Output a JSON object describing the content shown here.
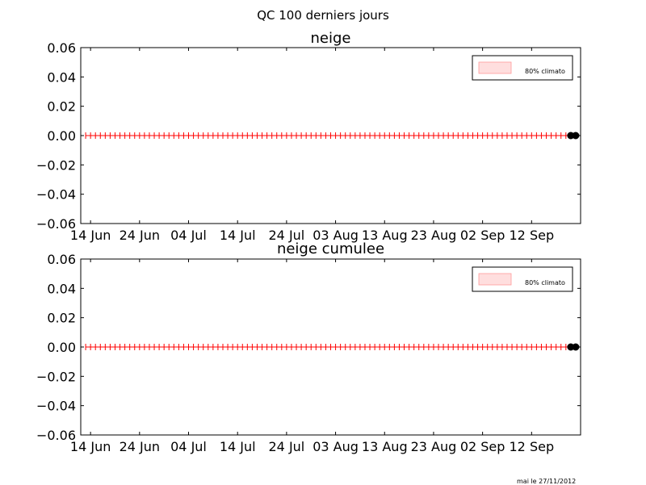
{
  "figure": {
    "suptitle": "QC 100 derniers jours",
    "footer": "mai le 27/11/2012"
  },
  "colors": {
    "series_line": "#ff0000",
    "climato_fill": "#ffdede",
    "climato_edge": "#ff9a9a",
    "last_points": "#000000"
  },
  "chart_data": [
    {
      "type": "line",
      "title": "neige",
      "xlabel": "",
      "ylabel": "",
      "x_range": [
        "2012-06-12",
        "2012-09-22"
      ],
      "ylim": [
        -0.06,
        0.06
      ],
      "yticks": [
        0.06,
        0.04,
        0.02,
        0.0,
        -0.02,
        -0.04,
        -0.06
      ],
      "ytick_labels": [
        "0.06",
        "0.04",
        "0.02",
        "0.00",
        "−0.02",
        "−0.04",
        "−0.06"
      ],
      "xticks": [
        "2012-06-14",
        "2012-06-24",
        "2012-07-04",
        "2012-07-14",
        "2012-07-24",
        "2012-08-03",
        "2012-08-13",
        "2012-08-23",
        "2012-09-02",
        "2012-09-12"
      ],
      "xtick_labels": [
        "14 Jun",
        "24 Jun",
        "04 Jul",
        "14 Jul",
        "24 Jul",
        "03 Aug",
        "13 Aug",
        "23 Aug",
        "02 Sep",
        "12 Sep"
      ],
      "grid": false,
      "legend": {
        "position": "top-right",
        "entries": [
          "80% climato"
        ]
      },
      "series": [
        {
          "marker": "+",
          "dates_start": "2012-06-13",
          "dates_end": "2012-09-20",
          "constant_value": 0.0
        },
        {
          "marker": "o",
          "x": [
            "2012-09-20",
            "2012-09-21"
          ],
          "y": [
            0.0,
            0.0
          ]
        }
      ]
    },
    {
      "type": "line",
      "title": "neige cumulee",
      "xlabel": "",
      "ylabel": "",
      "x_range": [
        "2012-06-12",
        "2012-09-22"
      ],
      "ylim": [
        -0.06,
        0.06
      ],
      "yticks": [
        0.06,
        0.04,
        0.02,
        0.0,
        -0.02,
        -0.04,
        -0.06
      ],
      "ytick_labels": [
        "0.06",
        "0.04",
        "0.02",
        "0.00",
        "−0.02",
        "−0.04",
        "−0.06"
      ],
      "xticks": [
        "2012-06-14",
        "2012-06-24",
        "2012-07-04",
        "2012-07-14",
        "2012-07-24",
        "2012-08-03",
        "2012-08-13",
        "2012-08-23",
        "2012-09-02",
        "2012-09-12"
      ],
      "xtick_labels": [
        "14 Jun",
        "24 Jun",
        "04 Jul",
        "14 Jul",
        "24 Jul",
        "03 Aug",
        "13 Aug",
        "23 Aug",
        "02 Sep",
        "12 Sep"
      ],
      "grid": false,
      "legend": {
        "position": "top-right",
        "entries": [
          "80% climato"
        ]
      },
      "series": [
        {
          "marker": "+",
          "dates_start": "2012-06-13",
          "dates_end": "2012-09-20",
          "constant_value": 0.0
        },
        {
          "marker": "o",
          "x": [
            "2012-09-20",
            "2012-09-21"
          ],
          "y": [
            0.0,
            0.0
          ]
        }
      ]
    }
  ]
}
